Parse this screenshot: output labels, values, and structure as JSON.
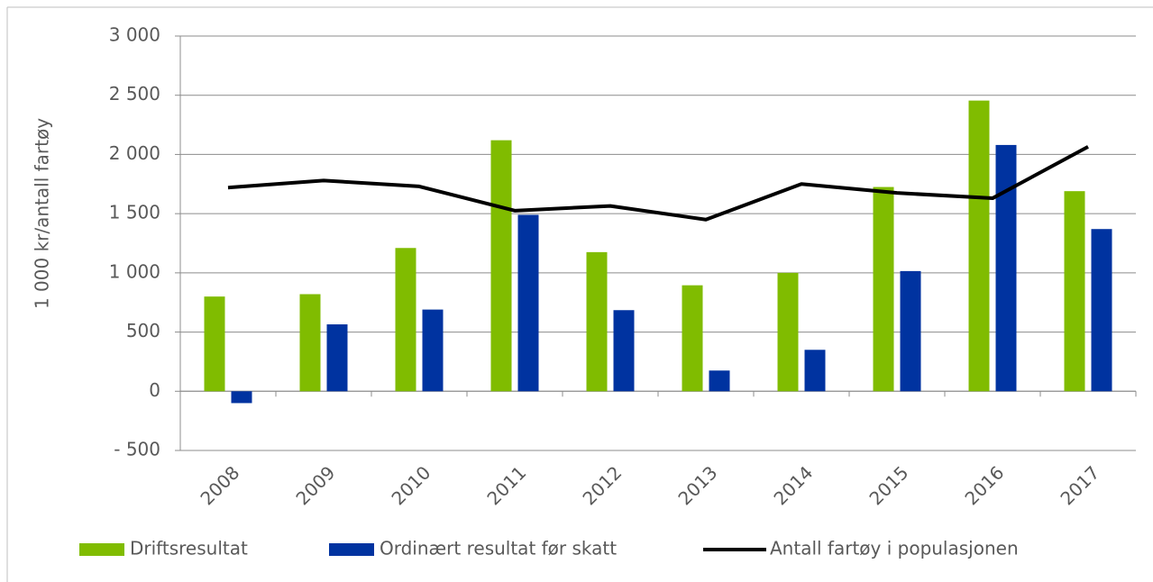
{
  "chart_data": {
    "type": "bar",
    "y_label": "1 000 kr/antall fartøy",
    "categories": [
      "2008",
      "2009",
      "2010",
      "2011",
      "2012",
      "2013",
      "2014",
      "2015",
      "2016",
      "2017"
    ],
    "series": [
      {
        "name": "Driftsresultat",
        "color": "#80bc00",
        "type": "bar",
        "values": [
          800,
          820,
          1210,
          2120,
          1175,
          895,
          1000,
          1725,
          2455,
          1690
        ]
      },
      {
        "name": "Ordinært resultat før skatt",
        "color": "#0033a0",
        "type": "bar",
        "values": [
          -100,
          565,
          690,
          1490,
          685,
          175,
          350,
          1015,
          2080,
          1370
        ]
      },
      {
        "name": "Antall fartøy i populasjonen",
        "color": "#000000",
        "type": "line",
        "values": [
          1720,
          1780,
          1730,
          1525,
          1565,
          1450,
          1750,
          1675,
          1630,
          2065
        ]
      }
    ],
    "ylim": [
      -500,
      3000
    ],
    "yticks": [
      {
        "value": -500,
        "label": "- 500"
      },
      0,
      500,
      {
        "value": 1000,
        "label": "1 000"
      },
      {
        "value": 1500,
        "label": "1 500"
      },
      {
        "value": 2000,
        "label": "2 000"
      },
      {
        "value": 2500,
        "label": "2 500"
      },
      {
        "value": 3000,
        "label": "3 000"
      }
    ],
    "grid": true,
    "legend": "bottom"
  }
}
